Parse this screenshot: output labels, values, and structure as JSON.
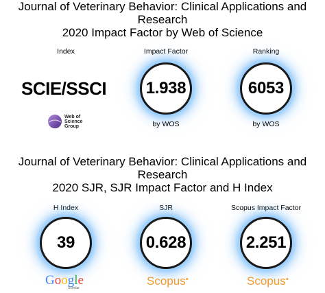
{
  "section1": {
    "title_line1": "Journal of Veterinary Behavior: Clinical Applications and",
    "title_line2": "Research",
    "title_line3": "2020 Impact Factor by Web of Science",
    "index_label": "Index",
    "index_value": "SCIE/SSCI",
    "impact_label": "Impact Factor",
    "impact_value": "1.938",
    "impact_caption": "by WOS",
    "ranking_label": "Ranking",
    "ranking_value": "6053",
    "ranking_caption": "by WOS",
    "logo_text": [
      "Web of",
      "Science",
      "Group"
    ]
  },
  "section2": {
    "title_line1": "Journal of Veterinary Behavior: Clinical Applications and",
    "title_line2": "Research",
    "title_line3": "2020 SJR, SJR Impact Factor and H Index",
    "hindex_label": "H Index",
    "hindex_value": "39",
    "hindex_logo": "Google",
    "hindex_logo_sub": "Scholar",
    "sjr_label": "SJR",
    "sjr_value": "0.628",
    "sjr_logo": "Scopus",
    "scopus_if_label": "Scopus Impact Factor",
    "scopus_if_value": "2.251",
    "scopus_if_logo": "Scopus"
  },
  "colors": {
    "scopus_orange": "#f29a2e",
    "circle_glow": "#8ec8ff",
    "google_blue": "#4285f4",
    "google_red": "#ea4335",
    "google_yellow": "#fbbc05",
    "google_green": "#34a853"
  }
}
